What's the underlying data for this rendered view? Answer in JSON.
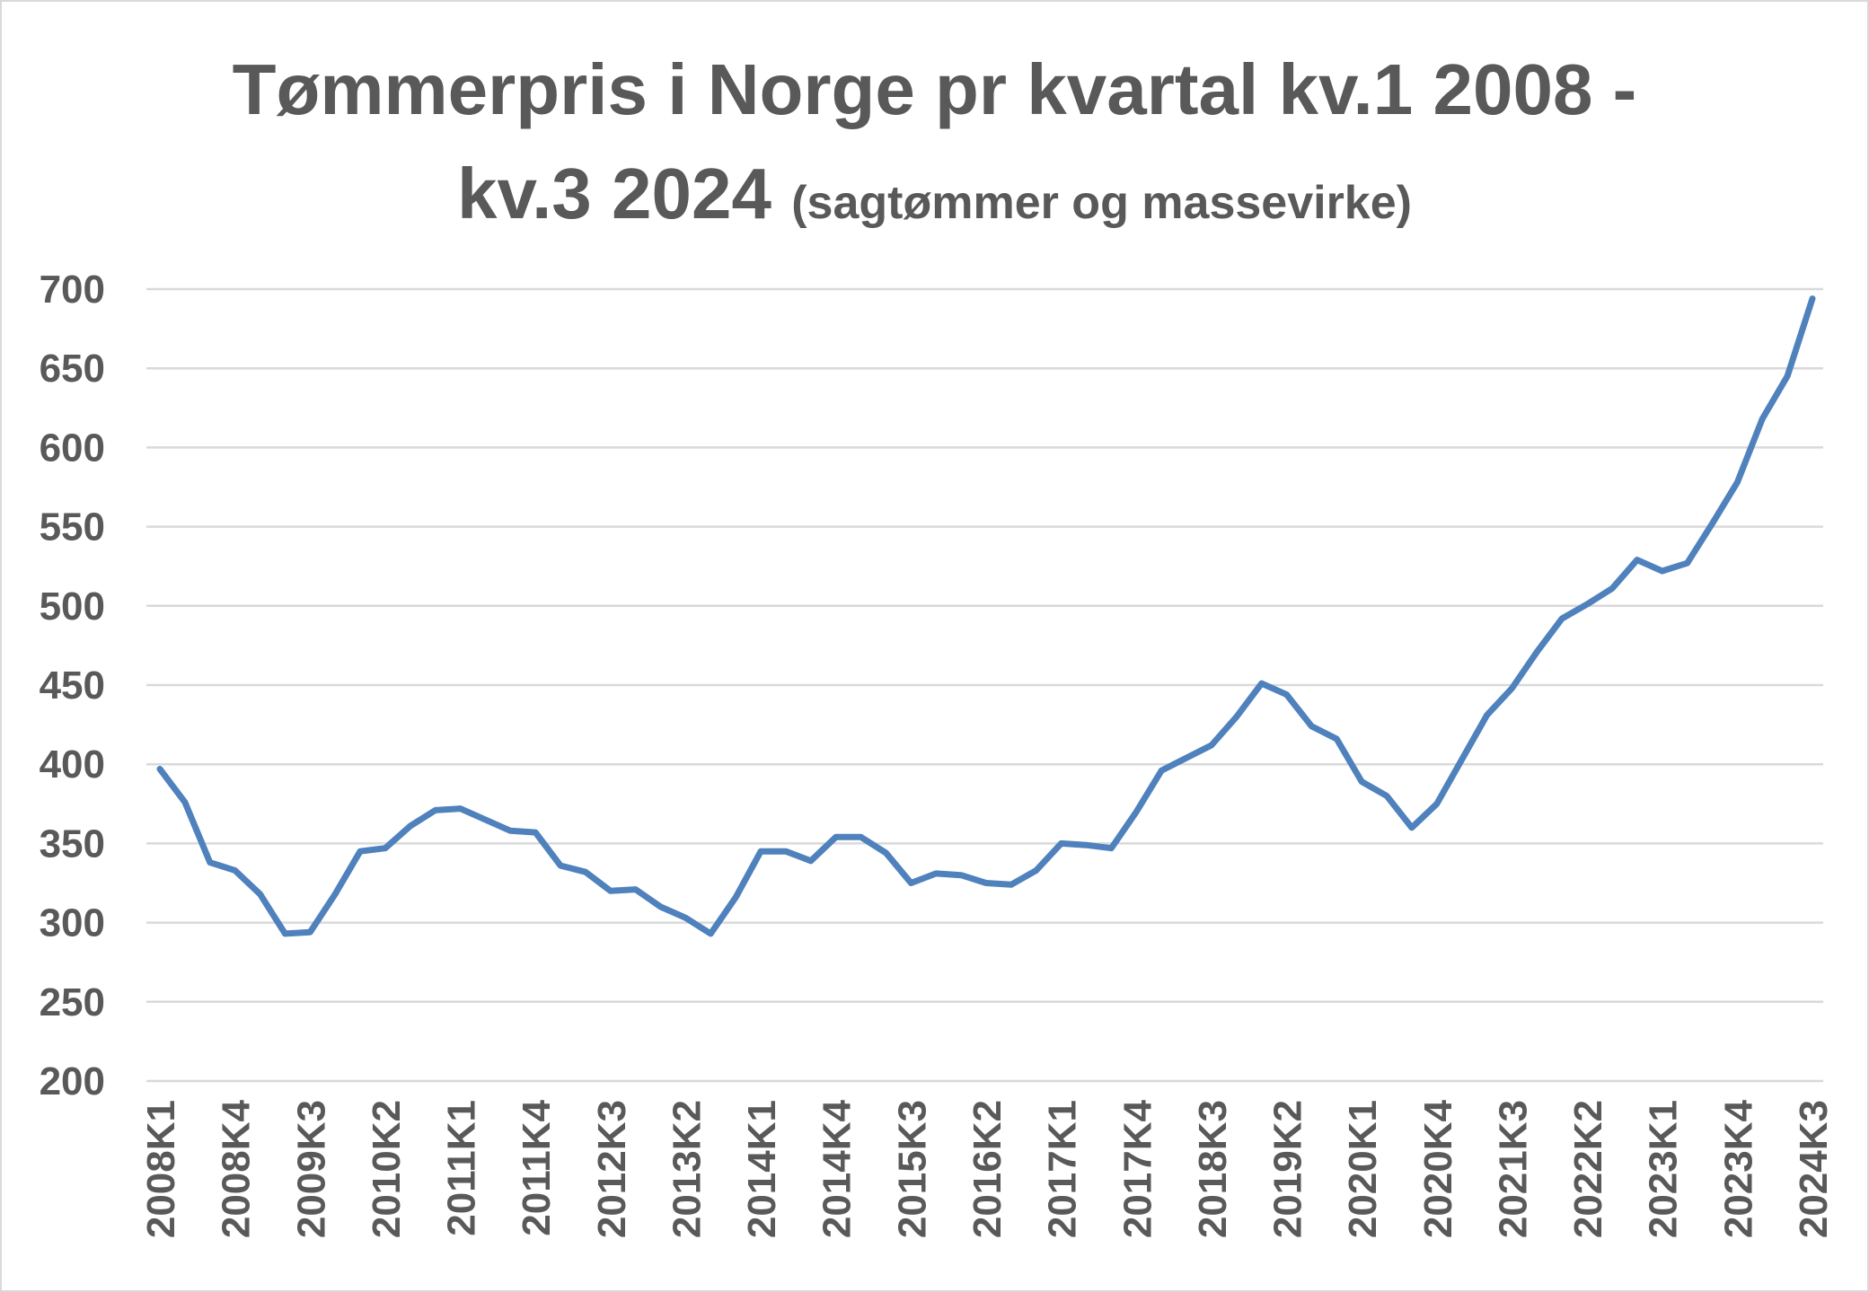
{
  "chart_data": {
    "type": "line",
    "title": "Tømmerpris i Norge pr kvartal kv.1 2008 -",
    "title_line2": "kv.3 2024",
    "subtitle": "(sagtømmer og massevirke)",
    "xlabel": "",
    "ylabel": "",
    "ylim": [
      200,
      700
    ],
    "yticks": [
      200,
      250,
      300,
      350,
      400,
      450,
      500,
      550,
      600,
      650,
      700
    ],
    "grid": true,
    "legend": "none",
    "line_color": "#4f81bd",
    "x": [
      "2008K1",
      "2008K2",
      "2008K3",
      "2008K4",
      "2009K1",
      "2009K2",
      "2009K3",
      "2009K4",
      "2010K1",
      "2010K2",
      "2010K3",
      "2010K4",
      "2011K1",
      "2011K2",
      "2011K3",
      "2011K4",
      "2012K1",
      "2012K2",
      "2012K3",
      "2012K4",
      "2013K1",
      "2013K2",
      "2013K3",
      "2013K4",
      "2014K1",
      "2014K2",
      "2014K3",
      "2014K4",
      "2015K1",
      "2015K2",
      "2015K3",
      "2015K4",
      "2016K1",
      "2016K2",
      "2016K3",
      "2016K4",
      "2017K1",
      "2017K2",
      "2017K3",
      "2017K4",
      "2018K1",
      "2018K2",
      "2018K3",
      "2018K4",
      "2019K1",
      "2019K2",
      "2019K3",
      "2019K4",
      "2020K1",
      "2020K2",
      "2020K3",
      "2020K4",
      "2021K1",
      "2021K2",
      "2021K3",
      "2021K4",
      "2022K1",
      "2022K2",
      "2022K3",
      "2022K4",
      "2023K1",
      "2023K2",
      "2023K3",
      "2023K4",
      "2024K1",
      "2024K2",
      "2024K3"
    ],
    "xtick_labels": [
      "2008K1",
      "2008K4",
      "2009K3",
      "2010K2",
      "2011K1",
      "2011K4",
      "2012K3",
      "2013K2",
      "2014K1",
      "2014K4",
      "2015K3",
      "2016K2",
      "2017K1",
      "2017K4",
      "2018K3",
      "2019K2",
      "2020K1",
      "2020K4",
      "2021K3",
      "2022K2",
      "2023K1",
      "2023K4",
      "2024K3"
    ],
    "series": [
      {
        "values": [
          397,
          376,
          338,
          333,
          318,
          293,
          294,
          318,
          345,
          347,
          361,
          371,
          372,
          365,
          358,
          357,
          336,
          332,
          320,
          321,
          310,
          303,
          293,
          316,
          345,
          345,
          339,
          354,
          354,
          344,
          325,
          331,
          330,
          325,
          324,
          333,
          350,
          349,
          347,
          370,
          396,
          404,
          412,
          430,
          451,
          444,
          424,
          416,
          389,
          380,
          360,
          375,
          403,
          431,
          448,
          471,
          492,
          501,
          511,
          529,
          522,
          527,
          552,
          578,
          618,
          645,
          694
        ]
      }
    ]
  }
}
